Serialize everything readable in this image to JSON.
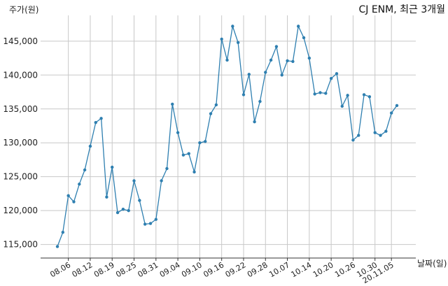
{
  "chart_data": {
    "type": "line",
    "title": "CJ ENM, 최근 3개월",
    "ylabel": "주가(원)",
    "xlabel": "날짜(일)",
    "ylim": [
      113000,
      148800
    ],
    "grid": true,
    "color": "#2e7fb0",
    "y_ticks": [
      115000,
      120000,
      125000,
      130000,
      135000,
      140000,
      145000
    ],
    "y_tick_labels": [
      "115,000",
      "120,000",
      "125,000",
      "130,000",
      "135,000",
      "140,000",
      "145,000"
    ],
    "x_ticks": [
      {
        "index": 2,
        "label": "08.06"
      },
      {
        "index": 6,
        "label": "08.12"
      },
      {
        "index": 10,
        "label": "08.19"
      },
      {
        "index": 14,
        "label": "08.25"
      },
      {
        "index": 18,
        "label": "08.31"
      },
      {
        "index": 22,
        "label": "09.04"
      },
      {
        "index": 26,
        "label": "09.10"
      },
      {
        "index": 30,
        "label": "09.16"
      },
      {
        "index": 34,
        "label": "09.22"
      },
      {
        "index": 38,
        "label": "09.28"
      },
      {
        "index": 42,
        "label": "10.07"
      },
      {
        "index": 46,
        "label": "10.14"
      },
      {
        "index": 50,
        "label": "10.20"
      },
      {
        "index": 54,
        "label": "10.26"
      },
      {
        "index": 58,
        "label": "10.30"
      },
      {
        "index": 61,
        "label": "20.11.05"
      }
    ],
    "values": [
      114700,
      116800,
      122200,
      121300,
      123900,
      126000,
      129500,
      133000,
      133600,
      122000,
      126400,
      119700,
      120200,
      120000,
      124400,
      121500,
      118000,
      118100,
      118700,
      124400,
      126200,
      135700,
      131500,
      128200,
      128400,
      125700,
      130000,
      130200,
      134300,
      135600,
      145300,
      142200,
      147200,
      144800,
      137100,
      140100,
      133100,
      136100,
      140400,
      142200,
      144200,
      140000,
      142100,
      142000,
      147200,
      145500,
      142500,
      137200,
      137400,
      137300,
      139500,
      140200,
      135400,
      137000,
      130400,
      131100,
      137100,
      136800,
      131500,
      131100,
      131700,
      134400,
      135500
    ]
  }
}
